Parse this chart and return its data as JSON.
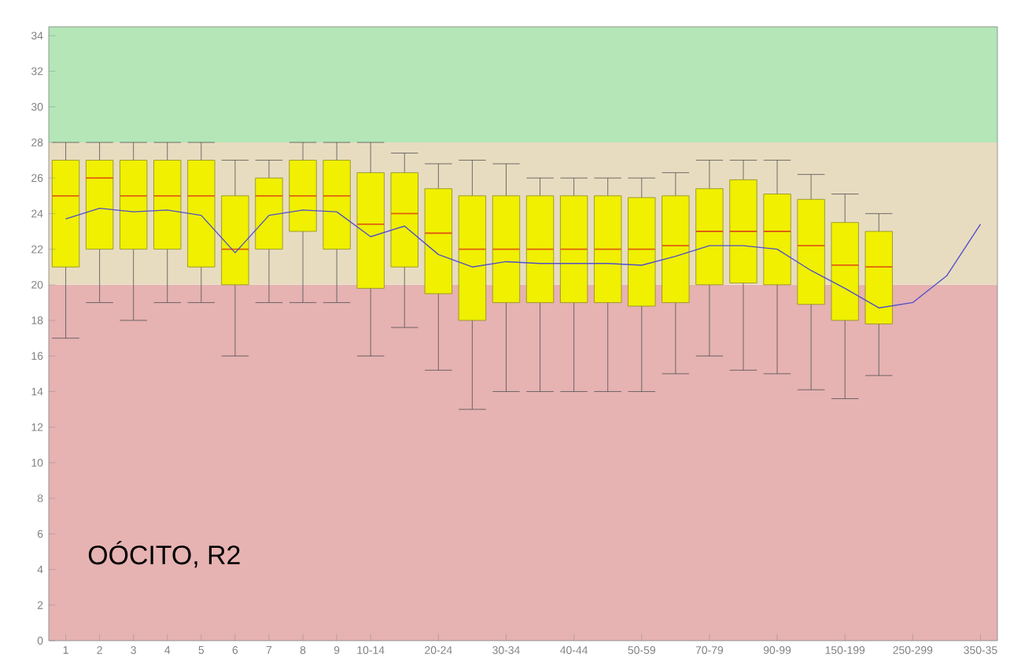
{
  "chart_data": {
    "type": "box",
    "categories": [
      "1",
      "2",
      "3",
      "4",
      "5",
      "6",
      "7",
      "8",
      "9",
      "10-14",
      null,
      "20-24",
      null,
      "30-34",
      null,
      "40-44",
      null,
      "50-59",
      null,
      "70-79",
      null,
      "90-99",
      null,
      "150-199",
      null,
      "250-299",
      null,
      "350-35"
    ],
    "series": [
      {
        "type": "box",
        "color": "#f0f000",
        "boxes": [
          {
            "low": 17,
            "q1": 21,
            "median": 25,
            "q3": 27,
            "high": 28
          },
          {
            "low": 19,
            "q1": 22,
            "median": 26,
            "q3": 27,
            "high": 28
          },
          {
            "low": 18,
            "q1": 22,
            "median": 25,
            "q3": 27,
            "high": 28
          },
          {
            "low": 19,
            "q1": 22,
            "median": 25,
            "q3": 27,
            "high": 28
          },
          {
            "low": 19,
            "q1": 21,
            "median": 25,
            "q3": 27,
            "high": 28
          },
          {
            "low": 16,
            "q1": 20,
            "median": 22,
            "q3": 25,
            "high": 27
          },
          {
            "low": 19,
            "q1": 22,
            "median": 25,
            "q3": 26,
            "high": 27
          },
          {
            "low": 19,
            "q1": 23,
            "median": 25,
            "q3": 27,
            "high": 28
          },
          {
            "low": 19,
            "q1": 22,
            "median": 25,
            "q3": 27,
            "high": 28
          },
          {
            "low": 16,
            "q1": 19.8,
            "median": 23.4,
            "q3": 26.3,
            "high": 28
          },
          {
            "low": 17.6,
            "q1": 21,
            "median": 24,
            "q3": 26.3,
            "high": 27.4
          },
          {
            "low": 15.2,
            "q1": 19.5,
            "median": 22.9,
            "q3": 25.4,
            "high": 26.8
          },
          {
            "low": 13,
            "q1": 18,
            "median": 22,
            "q3": 25,
            "high": 27
          },
          {
            "low": 14,
            "q1": 19,
            "median": 22,
            "q3": 25,
            "high": 26.8
          },
          {
            "low": 14,
            "q1": 19,
            "median": 22,
            "q3": 25,
            "high": 26
          },
          {
            "low": 14,
            "q1": 19,
            "median": 22,
            "q3": 25,
            "high": 26
          },
          {
            "low": 14,
            "q1": 19,
            "median": 22,
            "q3": 25,
            "high": 26
          },
          {
            "low": 14,
            "q1": 18.8,
            "median": 22,
            "q3": 24.9,
            "high": 26
          },
          {
            "low": 15,
            "q1": 19,
            "median": 22.2,
            "q3": 25,
            "high": 26.3
          },
          {
            "low": 16,
            "q1": 20,
            "median": 23,
            "q3": 25.4,
            "high": 27
          },
          {
            "low": 15.2,
            "q1": 20.1,
            "median": 23,
            "q3": 25.9,
            "high": 27
          },
          {
            "low": 15,
            "q1": 20,
            "median": 23,
            "q3": 25.1,
            "high": 27
          },
          {
            "low": 14.1,
            "q1": 18.9,
            "median": 22.2,
            "q3": 24.8,
            "high": 26.2
          },
          {
            "low": 13.6,
            "q1": 18,
            "median": 21.1,
            "q3": 23.5,
            "high": 25.1
          },
          {
            "low": 14.9,
            "q1": 17.8,
            "median": 21,
            "q3": 23,
            "high": 24
          },
          null,
          null,
          null
        ]
      },
      {
        "type": "line",
        "color": "#5050c8",
        "values": [
          23.7,
          24.3,
          24.1,
          24.2,
          23.9,
          21.8,
          23.9,
          24.2,
          24.1,
          22.7,
          23.3,
          21.7,
          21.0,
          21.3,
          21.2,
          21.2,
          21.2,
          21.1,
          21.6,
          22.2,
          22.2,
          22.0,
          20.8,
          19.8,
          18.7,
          19.0,
          20.5,
          23.4
        ]
      }
    ],
    "ylim": [
      0,
      34.5
    ],
    "yticks": [
      0,
      2,
      4,
      6,
      8,
      10,
      12,
      14,
      16,
      18,
      20,
      22,
      24,
      26,
      28,
      30,
      32,
      34
    ],
    "bands": [
      {
        "axis": "y",
        "from": 0,
        "to": 20,
        "color": "#e6b2b2"
      },
      {
        "axis": "y",
        "from": 20,
        "to": 28,
        "color": "#e8dcc0"
      },
      {
        "axis": "y",
        "from": 28,
        "to": 34.5,
        "color": "#b4e6b8"
      }
    ],
    "annotations": [
      "OÓCITO, R2"
    ]
  }
}
